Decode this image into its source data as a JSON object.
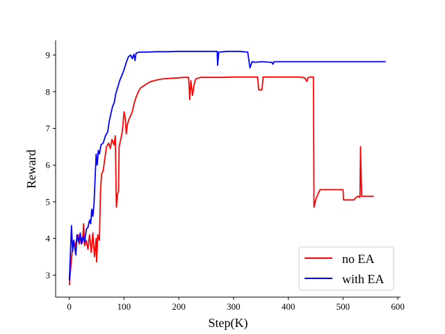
{
  "chart_data": {
    "type": "line",
    "title": "",
    "xlabel": "Step(K)",
    "ylabel": "Reward",
    "xlim": [
      -25,
      605
    ],
    "ylim": [
      2.4,
      9.4
    ],
    "xticks": [
      0,
      100,
      200,
      300,
      400,
      500,
      600
    ],
    "yticks": [
      3,
      4,
      5,
      6,
      7,
      8,
      9
    ],
    "grid": false,
    "legend_position": "lower-right",
    "series": [
      {
        "name": "no EA",
        "color": "#ff0000",
        "points": [
          [
            0,
            2.72
          ],
          [
            2,
            3.1
          ],
          [
            5,
            3.6
          ],
          [
            8,
            3.9
          ],
          [
            10,
            3.75
          ],
          [
            13,
            3.95
          ],
          [
            16,
            4.1
          ],
          [
            18,
            3.85
          ],
          [
            21,
            4.05
          ],
          [
            24,
            3.88
          ],
          [
            26,
            4.4
          ],
          [
            28,
            3.8
          ],
          [
            31,
            3.95
          ],
          [
            34,
            3.7
          ],
          [
            37,
            4.1
          ],
          [
            40,
            3.62
          ],
          [
            43,
            4.15
          ],
          [
            46,
            3.5
          ],
          [
            49,
            4.0
          ],
          [
            50,
            3.36
          ],
          [
            52,
            4.1
          ],
          [
            55,
            3.95
          ],
          [
            57,
            5.3
          ],
          [
            59,
            5.75
          ],
          [
            62,
            5.85
          ],
          [
            65,
            6.2
          ],
          [
            68,
            6.5
          ],
          [
            72,
            6.6
          ],
          [
            75,
            6.45
          ],
          [
            78,
            6.7
          ],
          [
            82,
            6.55
          ],
          [
            84,
            6.8
          ],
          [
            86,
            4.85
          ],
          [
            88,
            5.2
          ],
          [
            90,
            5.3
          ],
          [
            91,
            6.5
          ],
          [
            94,
            6.7
          ],
          [
            97,
            6.95
          ],
          [
            100,
            7.45
          ],
          [
            102,
            7.3
          ],
          [
            104,
            6.85
          ],
          [
            106,
            7.1
          ],
          [
            109,
            7.25
          ],
          [
            112,
            7.35
          ],
          [
            115,
            7.45
          ],
          [
            118,
            7.65
          ],
          [
            122,
            7.85
          ],
          [
            126,
            8.0
          ],
          [
            130,
            8.1
          ],
          [
            135,
            8.15
          ],
          [
            140,
            8.2
          ],
          [
            145,
            8.25
          ],
          [
            150,
            8.28
          ],
          [
            160,
            8.32
          ],
          [
            170,
            8.35
          ],
          [
            180,
            8.36
          ],
          [
            190,
            8.37
          ],
          [
            200,
            8.38
          ],
          [
            210,
            8.39
          ],
          [
            218,
            8.39
          ],
          [
            220,
            7.78
          ],
          [
            222,
            8.3
          ],
          [
            225,
            7.9
          ],
          [
            228,
            8.2
          ],
          [
            231,
            8.35
          ],
          [
            240,
            8.39
          ],
          [
            260,
            8.39
          ],
          [
            280,
            8.39
          ],
          [
            300,
            8.4
          ],
          [
            320,
            8.4
          ],
          [
            340,
            8.4
          ],
          [
            344,
            8.4
          ],
          [
            346,
            8.05
          ],
          [
            352,
            8.05
          ],
          [
            354,
            8.4
          ],
          [
            380,
            8.4
          ],
          [
            400,
            8.4
          ],
          [
            420,
            8.4
          ],
          [
            430,
            8.38
          ],
          [
            434,
            8.28
          ],
          [
            436,
            8.38
          ],
          [
            440,
            8.4
          ],
          [
            446,
            8.4
          ],
          [
            447,
            4.85
          ],
          [
            450,
            5.05
          ],
          [
            454,
            5.2
          ],
          [
            458,
            5.33
          ],
          [
            470,
            5.33
          ],
          [
            480,
            5.33
          ],
          [
            490,
            5.33
          ],
          [
            500,
            5.33
          ],
          [
            501,
            5.05
          ],
          [
            512,
            5.05
          ],
          [
            520,
            5.05
          ],
          [
            524,
            5.12
          ],
          [
            528,
            5.15
          ],
          [
            531,
            5.12
          ],
          [
            532,
            6.5
          ],
          [
            534,
            5.15
          ],
          [
            545,
            5.15
          ],
          [
            556,
            5.15
          ]
        ]
      },
      {
        "name": "with EA",
        "color": "#0000ff",
        "points": [
          [
            0,
            2.85
          ],
          [
            2,
            3.6
          ],
          [
            4,
            4.35
          ],
          [
            6,
            3.65
          ],
          [
            8,
            3.95
          ],
          [
            10,
            3.75
          ],
          [
            12,
            3.55
          ],
          [
            14,
            4.1
          ],
          [
            17,
            3.9
          ],
          [
            20,
            4.15
          ],
          [
            22,
            3.85
          ],
          [
            25,
            4.05
          ],
          [
            28,
            3.9
          ],
          [
            31,
            4.25
          ],
          [
            34,
            4.3
          ],
          [
            37,
            4.5
          ],
          [
            39,
            4.4
          ],
          [
            41,
            4.8
          ],
          [
            43,
            4.6
          ],
          [
            45,
            4.9
          ],
          [
            47,
            5.6
          ],
          [
            49,
            6.3
          ],
          [
            51,
            6.0
          ],
          [
            53,
            6.4
          ],
          [
            55,
            6.3
          ],
          [
            58,
            6.55
          ],
          [
            62,
            6.6
          ],
          [
            66,
            6.8
          ],
          [
            70,
            6.9
          ],
          [
            73,
            7.2
          ],
          [
            76,
            7.4
          ],
          [
            79,
            7.6
          ],
          [
            82,
            7.7
          ],
          [
            85,
            7.95
          ],
          [
            88,
            8.1
          ],
          [
            92,
            8.3
          ],
          [
            96,
            8.45
          ],
          [
            100,
            8.6
          ],
          [
            104,
            8.8
          ],
          [
            108,
            8.95
          ],
          [
            112,
            9.0
          ],
          [
            115,
            8.9
          ],
          [
            118,
            9.02
          ],
          [
            120,
            8.85
          ],
          [
            122,
            9.05
          ],
          [
            125,
            9.07
          ],
          [
            130,
            9.08
          ],
          [
            140,
            9.08
          ],
          [
            160,
            9.09
          ],
          [
            180,
            9.09
          ],
          [
            200,
            9.1
          ],
          [
            220,
            9.1
          ],
          [
            240,
            9.1
          ],
          [
            260,
            9.1
          ],
          [
            270,
            9.1
          ],
          [
            271,
            8.72
          ],
          [
            273,
            9.08
          ],
          [
            290,
            9.1
          ],
          [
            310,
            9.1
          ],
          [
            326,
            9.08
          ],
          [
            330,
            8.65
          ],
          [
            334,
            8.82
          ],
          [
            340,
            8.8
          ],
          [
            350,
            8.82
          ],
          [
            370,
            8.8
          ],
          [
            372,
            8.75
          ],
          [
            374,
            8.82
          ],
          [
            400,
            8.82
          ],
          [
            430,
            8.82
          ],
          [
            460,
            8.82
          ],
          [
            500,
            8.82
          ],
          [
            540,
            8.82
          ],
          [
            578,
            8.82
          ]
        ]
      }
    ]
  }
}
